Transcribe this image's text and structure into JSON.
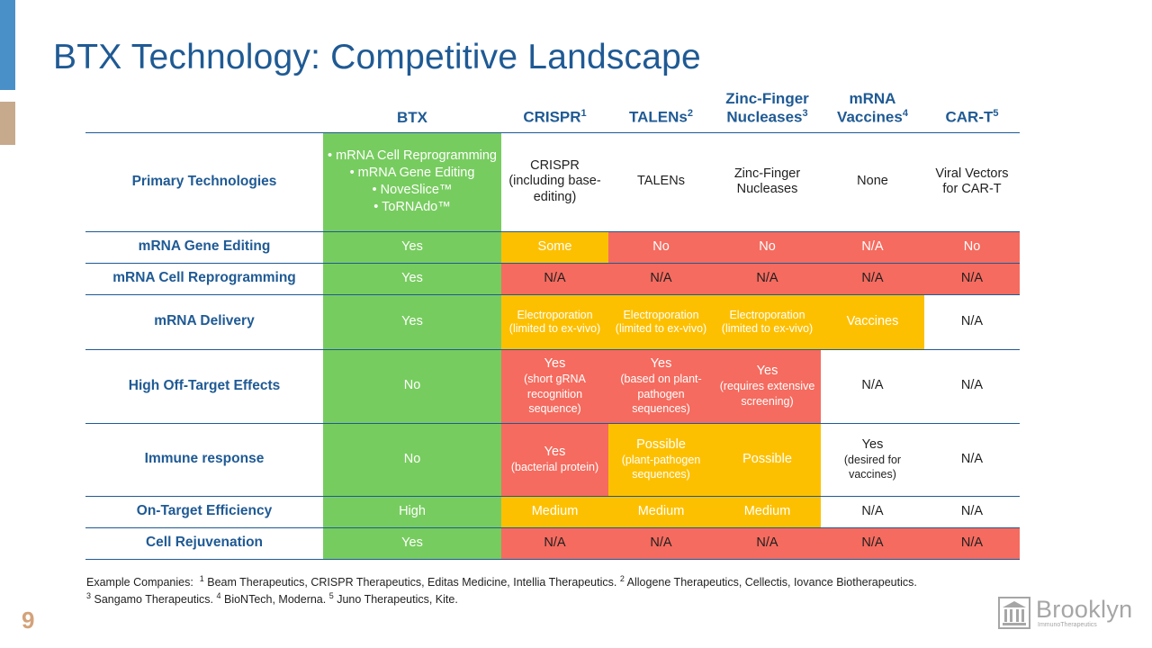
{
  "slide": {
    "title": "BTX Technology: Competitive Landscape",
    "page_number": "9"
  },
  "colors": {
    "green": "#77cc5f",
    "yellow": "#fdc000",
    "red": "#f56b5f",
    "title_blue": "#1f5a94"
  },
  "table": {
    "headers": {
      "btx": "BTX",
      "crispr": "CRISPR",
      "crispr_sup": "1",
      "talens": "TALENs",
      "talens_sup": "2",
      "zfn_1": "Zinc-Finger",
      "zfn_2": "Nucleases",
      "zfn_sup": "3",
      "mrna_1": "mRNA",
      "mrna_2": "Vaccines",
      "mrna_sup": "4",
      "cart": "CAR-T",
      "cart_sup": "5"
    },
    "rows": {
      "primary": {
        "label": "Primary Technologies",
        "btx_items": [
          "mRNA Cell Reprogramming",
          "mRNA Gene Editing",
          "NoveSlice™",
          "ToRNAdo™"
        ],
        "crispr": "CRISPR (including base-editing)",
        "talens": "TALENs",
        "zfn": "Zinc-Finger Nucleases",
        "mrna": "None",
        "cart": "Viral Vectors for CAR-T"
      },
      "gene_editing": {
        "label": "mRNA Gene Editing",
        "btx": "Yes",
        "crispr": "Some",
        "talens": "No",
        "zfn": "No",
        "mrna": "N/A",
        "cart": "No"
      },
      "cell_reprogramming": {
        "label": "mRNA Cell Reprogramming",
        "btx": "Yes",
        "crispr": "N/A",
        "talens": "N/A",
        "zfn": "N/A",
        "mrna": "N/A",
        "cart": "N/A"
      },
      "delivery": {
        "label": "mRNA Delivery",
        "btx": "Yes",
        "crispr": "Electroporation (limited to ex-vivo)",
        "talens": "Electroporation (limited to ex-vivo)",
        "zfn": "Electroporation (limited to ex-vivo)",
        "mrna": "Vaccines",
        "cart": "N/A"
      },
      "off_target": {
        "label": "High Off-Target Effects",
        "btx": "No",
        "crispr_main": "Yes",
        "crispr_detail": "(short gRNA recognition sequence)",
        "talens_main": "Yes",
        "talens_detail": "(based on plant-pathogen sequences)",
        "zfn_main": "Yes",
        "zfn_detail": "(requires extensive screening)",
        "mrna": "N/A",
        "cart": "N/A"
      },
      "immune": {
        "label": "Immune response",
        "btx": "No",
        "crispr_main": "Yes",
        "crispr_detail": "(bacterial protein)",
        "talens_main": "Possible",
        "talens_detail": "(plant-pathogen sequences)",
        "zfn": "Possible",
        "mrna_main": "Yes",
        "mrna_detail": "(desired for vaccines)",
        "cart": "N/A"
      },
      "efficiency": {
        "label": "On-Target Efficiency",
        "btx": "High",
        "crispr": "Medium",
        "talens": "Medium",
        "zfn": "Medium",
        "mrna": "N/A",
        "cart": "N/A"
      },
      "rejuvenation": {
        "label": "Cell Rejuvenation",
        "btx": "Yes",
        "crispr": "N/A",
        "talens": "N/A",
        "zfn": "N/A",
        "mrna": "N/A",
        "cart": "N/A"
      }
    }
  },
  "footnote": {
    "prefix": "Example Companies:",
    "n1": "1",
    "t1": "Beam Therapeutics, CRISPR Therapeutics, Editas Medicine, Intellia Therapeutics.",
    "n2": "2",
    "t2": "Allogene Therapeutics, Cellectis, Iovance Biotherapeutics.",
    "n3": "3",
    "t3": "Sangamo Therapeutics.",
    "n4": "4",
    "t4": "BioNTech, Moderna.",
    "n5": "5",
    "t5": "Juno Therapeutics, Kite."
  },
  "logo": {
    "name": "Brooklyn",
    "subtitle": "ImmunoTherapeutics",
    "icon": "building-columns-icon"
  }
}
